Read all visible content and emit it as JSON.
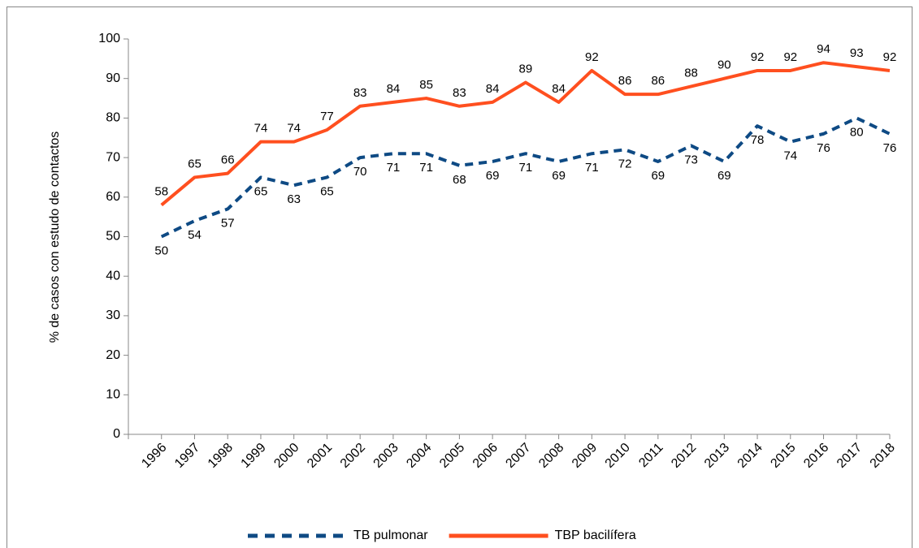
{
  "chart_data": {
    "type": "line",
    "y_label": "% de casos con estudo de contactos",
    "categories": [
      "1996",
      "1997",
      "1998",
      "1999",
      "2000",
      "2001",
      "2002",
      "2003",
      "2004",
      "2005",
      "2006",
      "2007",
      "2008",
      "2009",
      "2010",
      "2011",
      "2012",
      "2013",
      "2014",
      "2015",
      "2016",
      "2017",
      "2018"
    ],
    "series": [
      {
        "name": "TB pulmonar",
        "color": "#0e4a84",
        "dashed": true,
        "label_position": "below",
        "values": [
          50,
          54,
          57,
          65,
          63,
          65,
          70,
          71,
          71,
          68,
          69,
          71,
          69,
          71,
          72,
          69,
          73,
          69,
          78,
          74,
          76,
          80,
          76
        ]
      },
      {
        "name": "TBP bacilífera",
        "color": "#ff4f1f",
        "dashed": false,
        "label_position": "above",
        "values": [
          58,
          65,
          66,
          74,
          74,
          77,
          83,
          84,
          85,
          83,
          84,
          89,
          84,
          92,
          86,
          86,
          88,
          90,
          92,
          92,
          94,
          93,
          92
        ]
      }
    ],
    "ylim": [
      0,
      100
    ],
    "yticks": [
      0,
      10,
      20,
      30,
      40,
      50,
      60,
      70,
      80,
      90,
      100
    ],
    "grid": false,
    "legend": "bottom"
  }
}
